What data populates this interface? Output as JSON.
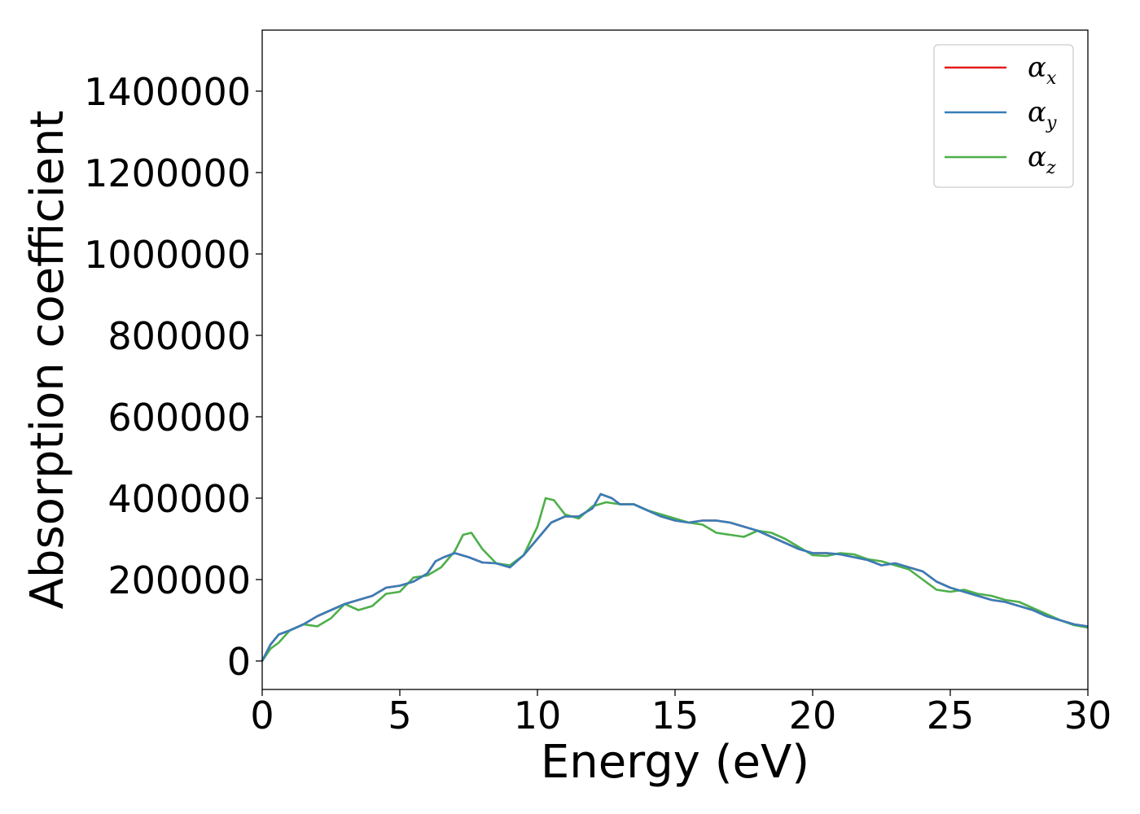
{
  "chart_data": {
    "type": "line",
    "title": "",
    "xlabel": "Energy (eV)",
    "ylabel": "Absorption coefficient",
    "xlim": [
      0,
      30
    ],
    "ylim": [
      -70000,
      1550000
    ],
    "xticks": [
      0,
      5,
      10,
      15,
      20,
      25,
      30
    ],
    "xtick_labels": [
      "0",
      "5",
      "10",
      "15",
      "20",
      "25",
      "30"
    ],
    "yticks": [
      0,
      200000,
      400000,
      600000,
      800000,
      1000000,
      1200000,
      1400000
    ],
    "ytick_labels": [
      "0",
      "200000",
      "400000",
      "600000",
      "800000",
      "1000000",
      "1200000",
      "1400000"
    ],
    "grid": false,
    "legend_position": "top-right",
    "series": [
      {
        "name": "α_x",
        "symbol": "α",
        "subscript": "x",
        "color": "#e41a1c",
        "x": [
          0,
          0.3,
          0.6,
          1,
          1.5,
          2,
          2.5,
          3,
          3.5,
          4,
          4.5,
          5,
          5.5,
          6,
          6.3,
          6.6,
          7,
          7.5,
          8,
          8.5,
          9,
          9.5,
          10,
          10.5,
          11,
          11.5,
          12,
          12.3,
          12.7,
          13,
          13.5,
          14,
          14.5,
          15,
          15.5,
          16,
          16.5,
          17,
          17.5,
          18,
          18.5,
          19,
          19.5,
          20,
          20.5,
          21,
          21.5,
          22,
          22.5,
          23,
          23.5,
          24,
          24.5,
          25,
          25.5,
          26,
          26.5,
          27,
          27.5,
          28,
          28.5,
          29,
          29.5,
          30
        ],
        "values": [
          0,
          40000,
          65000,
          75000,
          90000,
          110000,
          125000,
          140000,
          150000,
          160000,
          180000,
          185000,
          195000,
          215000,
          245000,
          255000,
          265000,
          255000,
          242000,
          240000,
          230000,
          260000,
          300000,
          340000,
          355000,
          355000,
          375000,
          410000,
          400000,
          385000,
          385000,
          370000,
          355000,
          345000,
          340000,
          345000,
          345000,
          340000,
          330000,
          320000,
          305000,
          290000,
          275000,
          265000,
          265000,
          262000,
          255000,
          248000,
          235000,
          240000,
          230000,
          220000,
          195000,
          180000,
          170000,
          160000,
          150000,
          145000,
          135000,
          125000,
          110000,
          100000,
          90000,
          85000
        ]
      },
      {
        "name": "α_y",
        "symbol": "α",
        "subscript": "y",
        "color": "#377eb8",
        "x": [
          0,
          0.3,
          0.6,
          1,
          1.5,
          2,
          2.5,
          3,
          3.5,
          4,
          4.5,
          5,
          5.5,
          6,
          6.3,
          6.6,
          7,
          7.5,
          8,
          8.5,
          9,
          9.5,
          10,
          10.5,
          11,
          11.5,
          12,
          12.3,
          12.7,
          13,
          13.5,
          14,
          14.5,
          15,
          15.5,
          16,
          16.5,
          17,
          17.5,
          18,
          18.5,
          19,
          19.5,
          20,
          20.5,
          21,
          21.5,
          22,
          22.5,
          23,
          23.5,
          24,
          24.5,
          25,
          25.5,
          26,
          26.5,
          27,
          27.5,
          28,
          28.5,
          29,
          29.5,
          30
        ],
        "values": [
          0,
          40000,
          65000,
          75000,
          90000,
          110000,
          125000,
          140000,
          150000,
          160000,
          180000,
          185000,
          195000,
          215000,
          245000,
          255000,
          265000,
          255000,
          242000,
          240000,
          230000,
          260000,
          300000,
          340000,
          355000,
          355000,
          375000,
          410000,
          400000,
          385000,
          385000,
          370000,
          355000,
          345000,
          340000,
          345000,
          345000,
          340000,
          330000,
          320000,
          305000,
          290000,
          275000,
          265000,
          265000,
          262000,
          255000,
          248000,
          235000,
          240000,
          230000,
          220000,
          195000,
          180000,
          170000,
          160000,
          150000,
          145000,
          135000,
          125000,
          110000,
          100000,
          90000,
          85000
        ]
      },
      {
        "name": "α_z",
        "symbol": "α",
        "subscript": "z",
        "color": "#4daf4a",
        "x": [
          0,
          0.3,
          0.6,
          1,
          1.5,
          2,
          2.5,
          3,
          3.5,
          4,
          4.5,
          5,
          5.5,
          6,
          6.5,
          7,
          7.3,
          7.6,
          8,
          8.5,
          9,
          9.5,
          10,
          10.3,
          10.6,
          11,
          11.5,
          12,
          12.5,
          13,
          13.5,
          14,
          14.5,
          15,
          15.5,
          16,
          16.5,
          17,
          17.5,
          18,
          18.5,
          19,
          19.5,
          20,
          20.5,
          21,
          21.5,
          22,
          22.5,
          23,
          23.5,
          24,
          24.5,
          25,
          25.5,
          26,
          26.5,
          27,
          27.5,
          28,
          28.5,
          29,
          29.5,
          30
        ],
        "values": [
          0,
          30000,
          45000,
          75000,
          90000,
          85000,
          105000,
          140000,
          125000,
          135000,
          165000,
          170000,
          205000,
          210000,
          230000,
          270000,
          310000,
          315000,
          275000,
          240000,
          235000,
          260000,
          330000,
          400000,
          395000,
          360000,
          350000,
          380000,
          390000,
          385000,
          385000,
          370000,
          360000,
          350000,
          340000,
          335000,
          315000,
          310000,
          305000,
          320000,
          315000,
          300000,
          280000,
          260000,
          258000,
          265000,
          262000,
          250000,
          245000,
          235000,
          225000,
          200000,
          175000,
          170000,
          175000,
          165000,
          160000,
          150000,
          145000,
          130000,
          115000,
          100000,
          88000,
          82000
        ]
      }
    ]
  }
}
